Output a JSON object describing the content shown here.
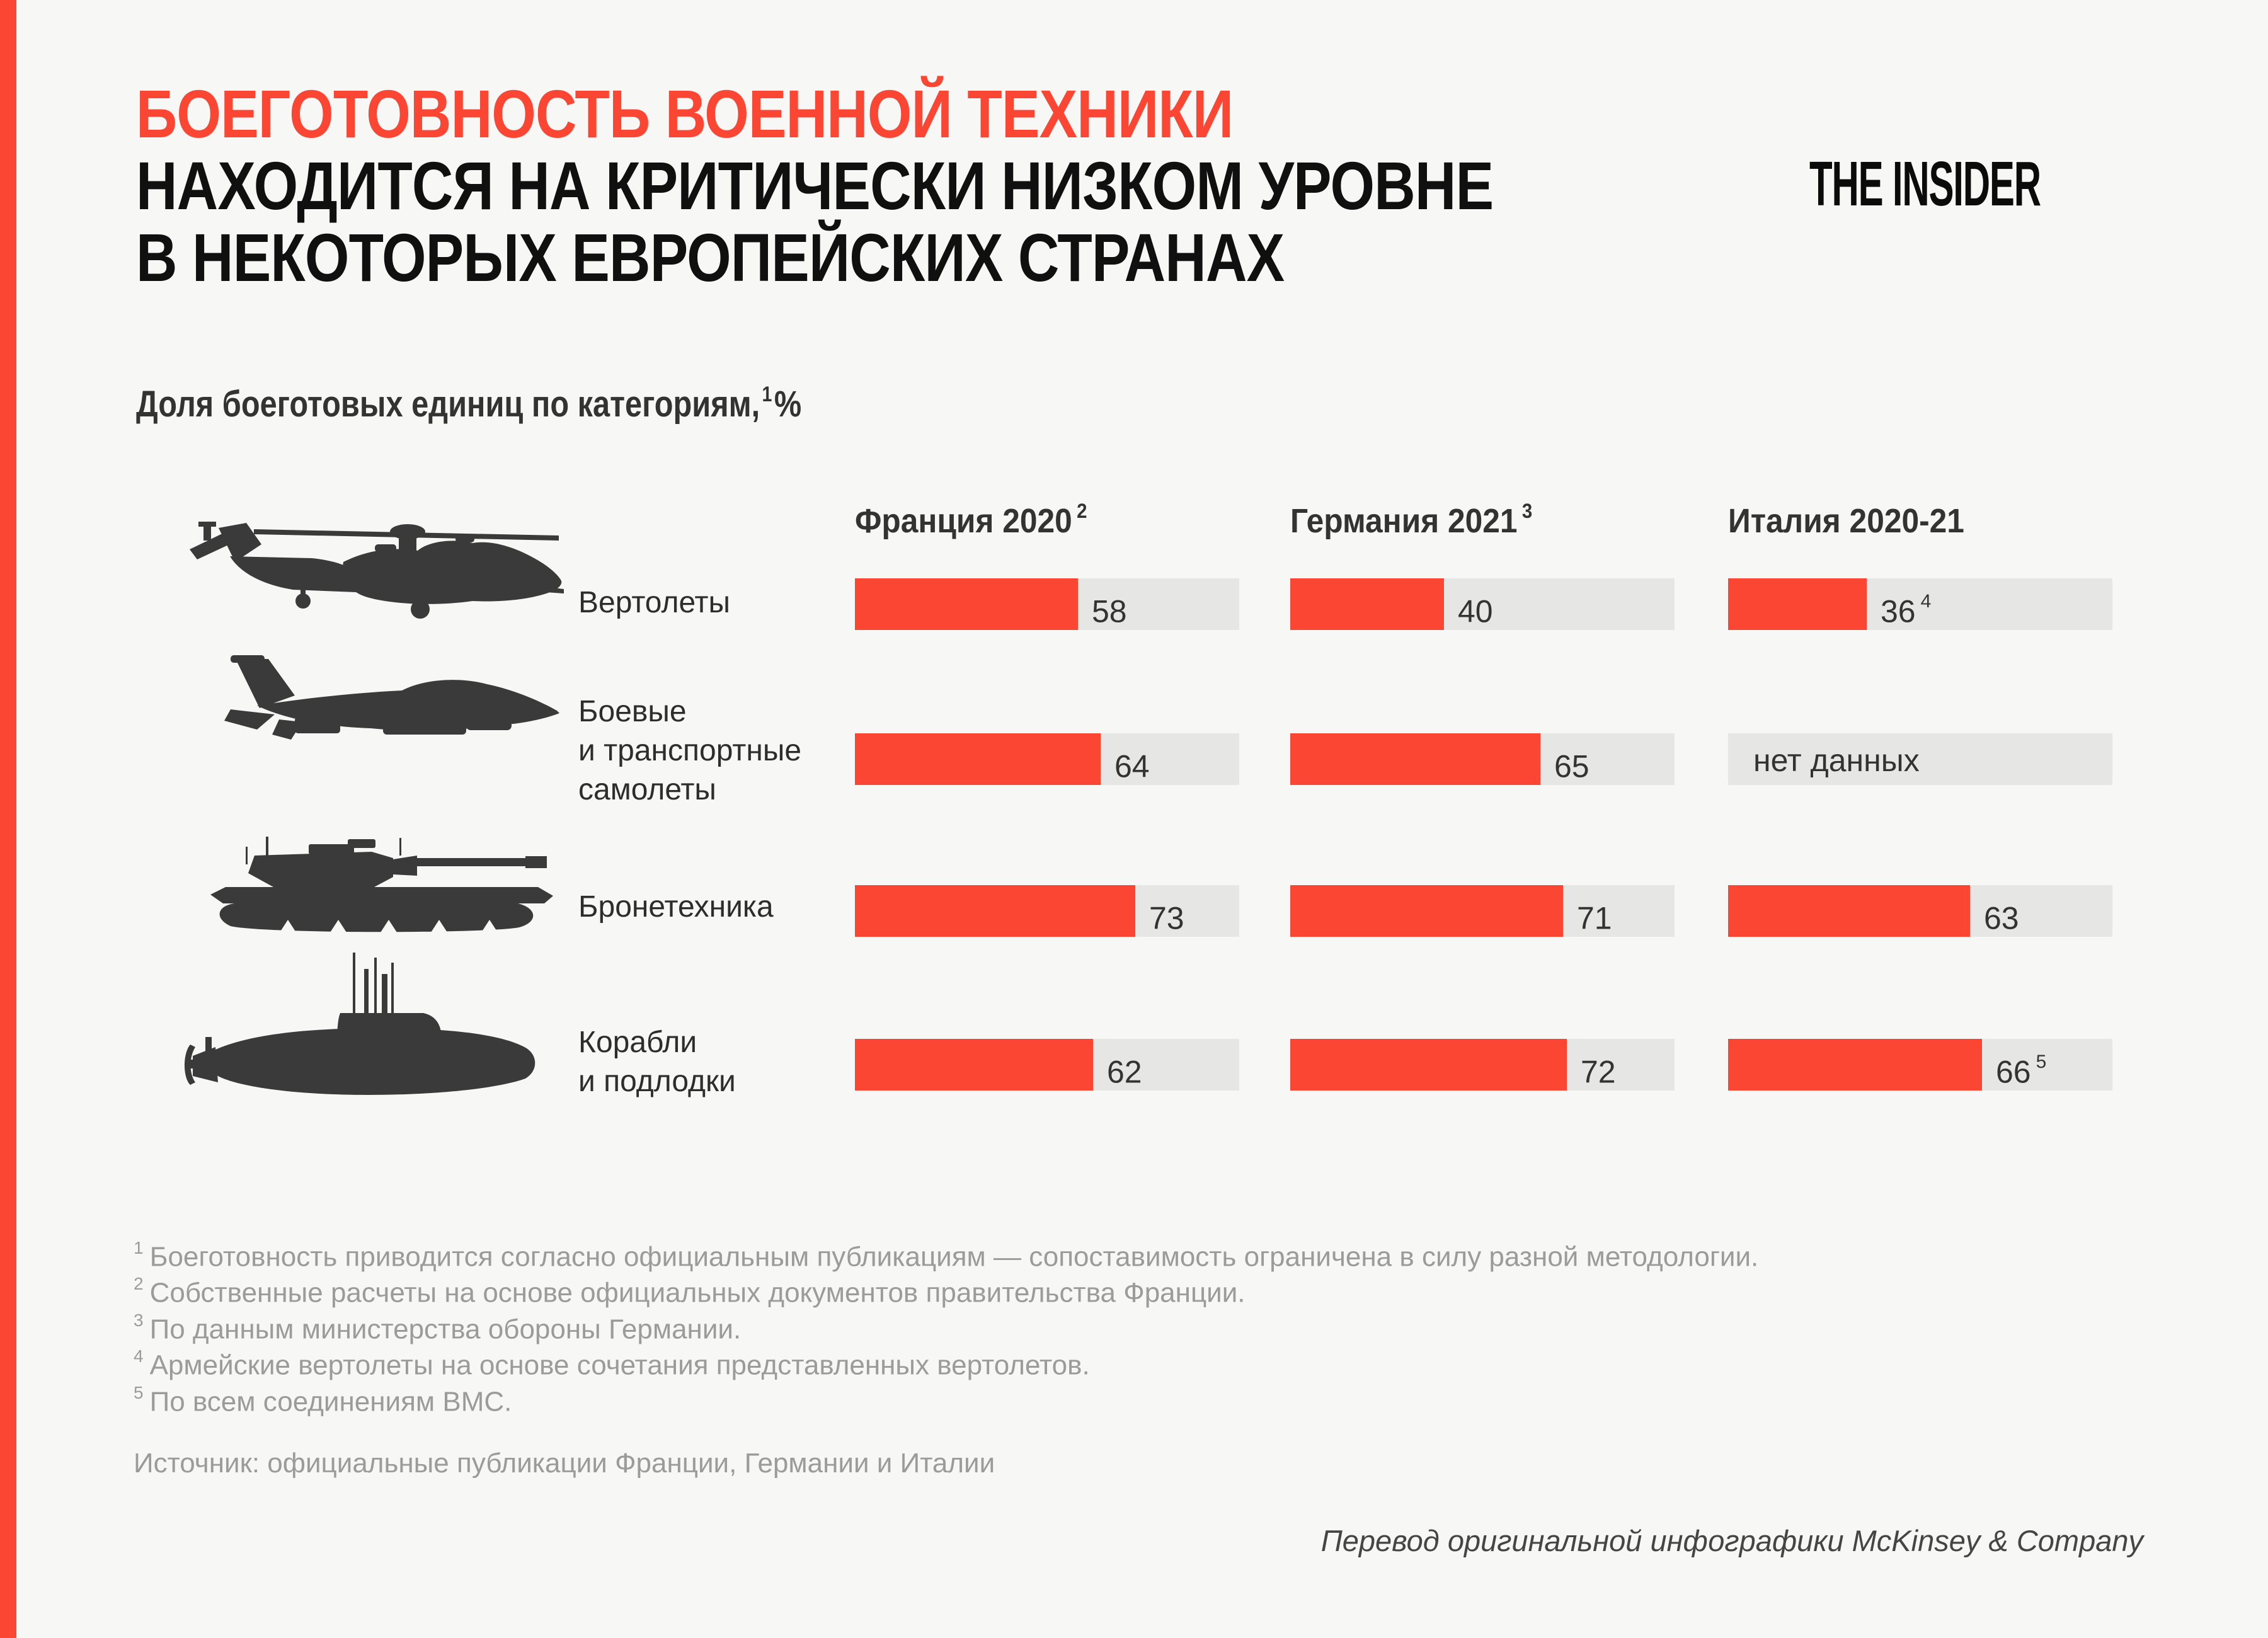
{
  "colors": {
    "accent_red": "#fb4634",
    "background": "#f7f7f5",
    "bar_track": "#e6e6e4",
    "icon_ink": "#3a3a3a",
    "footnote_gray": "#9b9b9b"
  },
  "header": {
    "title_line1": "БОЕГОТОВНОСТЬ ВОЕННОЙ ТЕХНИКИ",
    "title_line2": "НАХОДИТСЯ НА КРИТИЧЕСКИ НИЗКОМ УРОВНЕ",
    "title_line3": "В НЕКОТОРЫХ ЕВРОПЕЙСКИХ СТРАНАХ",
    "brand": "THE INSIDER",
    "subtitle_text": "Доля боеготовых единиц по категориям,",
    "subtitle_sup": "1",
    "subtitle_unit": "%"
  },
  "chart_data": {
    "type": "bar",
    "orientation": "horizontal",
    "unit": "%",
    "title": "Доля боеготовых единиц по категориям, %",
    "xlim": [
      0,
      100
    ],
    "grid": false,
    "columns": [
      {
        "label": "Франция 2020",
        "sup": "2"
      },
      {
        "label": "Германия 2021",
        "sup": "3"
      },
      {
        "label": "Италия 2020-21",
        "sup": ""
      }
    ],
    "categories": [
      "Вертолеты",
      "Боевые и транспортные самолеты",
      "Бронетехника",
      "Корабли и подлодки"
    ],
    "series": [
      {
        "name": "Франция 2020",
        "values": [
          58,
          64,
          73,
          62
        ]
      },
      {
        "name": "Германия 2021",
        "values": [
          40,
          65,
          71,
          72
        ]
      },
      {
        "name": "Италия 2020-21",
        "values": [
          36,
          null,
          63,
          66
        ]
      }
    ],
    "no_data_label": "нет данных",
    "rows": [
      {
        "icon": "helicopter-icon",
        "label_lines": [
          "Вертолеты",
          "",
          ""
        ],
        "cells": [
          {
            "value": 58,
            "sup": ""
          },
          {
            "value": 40,
            "sup": ""
          },
          {
            "value": 36,
            "sup": "4"
          }
        ]
      },
      {
        "icon": "fighter-jet-icon",
        "label_lines": [
          "Боевые",
          "и транспортные",
          "самолеты"
        ],
        "cells": [
          {
            "value": 64,
            "sup": ""
          },
          {
            "value": 65,
            "sup": ""
          },
          {
            "value": null,
            "sup": ""
          }
        ]
      },
      {
        "icon": "tank-icon",
        "label_lines": [
          "Бронетехника",
          "",
          ""
        ],
        "cells": [
          {
            "value": 73,
            "sup": ""
          },
          {
            "value": 71,
            "sup": ""
          },
          {
            "value": 63,
            "sup": ""
          }
        ]
      },
      {
        "icon": "submarine-icon",
        "label_lines": [
          "Корабли",
          "и подлодки",
          ""
        ],
        "cells": [
          {
            "value": 62,
            "sup": ""
          },
          {
            "value": 72,
            "sup": ""
          },
          {
            "value": 66,
            "sup": "5"
          }
        ]
      }
    ]
  },
  "footnotes": [
    {
      "n": "1",
      "text": "Боеготовность приводится согласно официальным публикациям — сопоставимость ограничена в силу разной методологии."
    },
    {
      "n": "2",
      "text": "Собственные расчеты на основе официальных документов правительства Франции."
    },
    {
      "n": "3",
      "text": "По данным министерства обороны Германии."
    },
    {
      "n": "4",
      "text": "Армейские вертолеты на основе сочетания представленных вертолетов."
    },
    {
      "n": "5",
      "text": "По всем соединениям ВМС."
    }
  ],
  "source": "Источник: официальные публикации Франции, Германии и Италии",
  "credit": "Перевод оригинальной инфографики McKinsey & Company"
}
